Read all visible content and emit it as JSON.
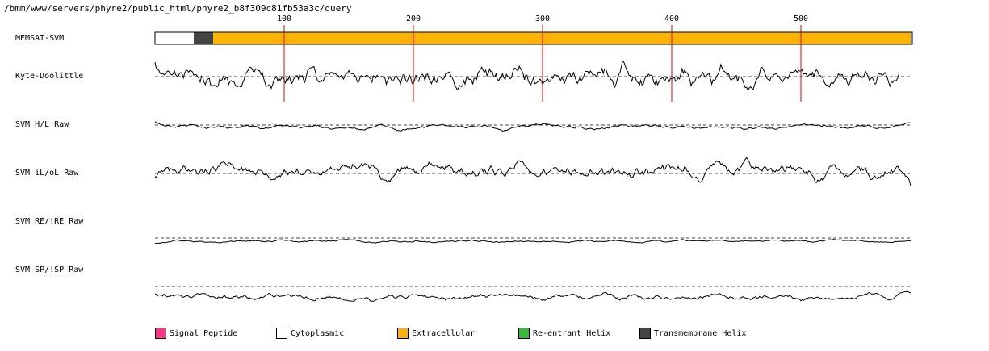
{
  "header": {
    "path": "/bmm/www/servers/phyre2/public_html/phyre2_b8f309c81fb53a3c/query"
  },
  "colors": {
    "cytoplasmic": "#ffffff",
    "transmembrane": "#444444",
    "extracellular": "#ffb300",
    "signal_peptide": "#ff3388",
    "reentrant": "#33bb33",
    "ruler": "#dd0000"
  },
  "chart_data": {
    "type": "line",
    "x_ticks": [
      100,
      200,
      300,
      400,
      500
    ],
    "sequence_length": 585,
    "tracks": [
      {
        "label": "MEMSAT-SVM",
        "kind": "segments",
        "segments": [
          {
            "start": 1,
            "end": 30,
            "class": "cytoplasmic"
          },
          {
            "start": 31,
            "end": 45,
            "class": "transmembrane"
          },
          {
            "start": 46,
            "end": 585,
            "class": "extracellular"
          }
        ]
      },
      {
        "label": "Kyte-Doolittle",
        "kind": "line"
      },
      {
        "label": "SVM H/L Raw",
        "kind": "line"
      },
      {
        "label": "SVM iL/oL Raw",
        "kind": "line"
      },
      {
        "label": "SVM RE/!RE Raw",
        "kind": "line"
      },
      {
        "label": "SVM SP/!SP Raw",
        "kind": "line"
      }
    ],
    "legend": [
      {
        "label": "Signal Peptide",
        "color_key": "signal_peptide"
      },
      {
        "label": "Cytoplasmic",
        "color_key": "cytoplasmic"
      },
      {
        "label": "Extracellular",
        "color_key": "extracellular"
      },
      {
        "label": "Re-entrant Helix",
        "color_key": "reentrant"
      },
      {
        "label": "Transmembrane Helix",
        "color_key": "transmembrane"
      }
    ]
  }
}
